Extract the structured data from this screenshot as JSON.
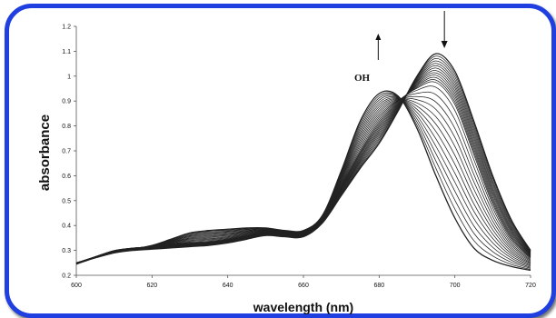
{
  "chart_data": {
    "type": "line",
    "title": "",
    "xlabel": "wavelength (nm)",
    "ylabel": "absorbance",
    "xlim": [
      600,
      720
    ],
    "ylim": [
      0.2,
      1.2
    ],
    "x_ticks": [
      "600",
      "620",
      "640",
      "660",
      "680",
      "700",
      "720"
    ],
    "y_ticks": [
      "0.2",
      "0.3",
      "0.4",
      "0.5",
      "0.6",
      "0.7",
      "0.8",
      "0.9",
      "1",
      "1.1",
      "1.2"
    ],
    "grid": false,
    "legend": "none",
    "line_color": "#222222",
    "series_count": 26,
    "x": [
      600,
      605,
      610,
      615,
      620,
      625,
      630,
      635,
      640,
      645,
      650,
      655,
      660,
      665,
      670,
      675,
      680,
      685,
      690,
      695,
      700,
      705,
      710,
      715,
      720
    ],
    "series": [
      {
        "values": [
          0.25,
          0.27,
          0.29,
          0.305,
          0.32,
          0.345,
          0.37,
          0.38,
          0.385,
          0.39,
          0.39,
          0.38,
          0.38,
          0.44,
          0.62,
          0.82,
          0.93,
          0.92,
          0.79,
          0.6,
          0.43,
          0.31,
          0.26,
          0.235,
          0.22
        ]
      },
      {
        "values": [
          0.25,
          0.275,
          0.3,
          0.31,
          0.315,
          0.325,
          0.33,
          0.335,
          0.345,
          0.36,
          0.375,
          0.37,
          0.365,
          0.42,
          0.56,
          0.7,
          0.82,
          0.9,
          0.95,
          0.97,
          0.88,
          0.68,
          0.48,
          0.34,
          0.27
        ]
      },
      {
        "values": [
          0.245,
          0.27,
          0.29,
          0.3,
          0.305,
          0.31,
          0.315,
          0.32,
          0.33,
          0.345,
          0.36,
          0.355,
          0.355,
          0.41,
          0.52,
          0.63,
          0.73,
          0.86,
          1.0,
          1.09,
          1.02,
          0.82,
          0.6,
          0.42,
          0.3
        ]
      }
    ],
    "annotations": [
      {
        "text": "OH",
        "type": "label"
      },
      {
        "type": "arrow-up",
        "near": 680
      },
      {
        "type": "arrow-down",
        "near": 697
      }
    ]
  }
}
